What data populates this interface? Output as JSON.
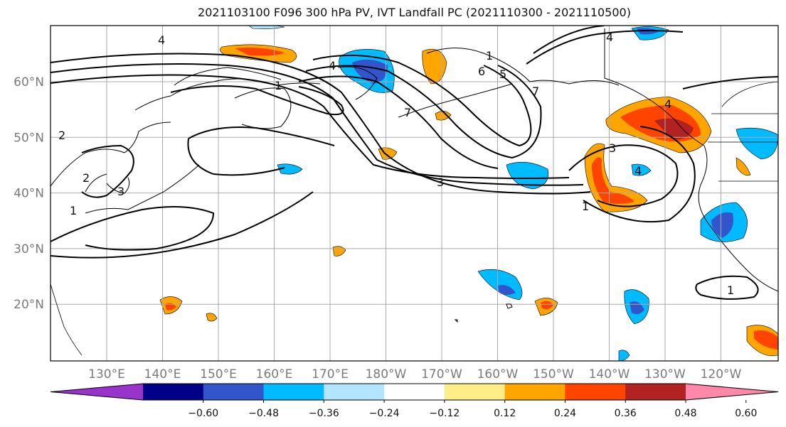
{
  "title": "2021103100 F096 300 hPa PV, IVT Landfall PC (2021110300 - 2021110500)",
  "latitudes": [
    {
      "value": 60,
      "label": "60°N"
    },
    {
      "value": 50,
      "label": "50°N"
    },
    {
      "value": 40,
      "label": "40°N"
    },
    {
      "value": 30,
      "label": "30°N"
    },
    {
      "value": 20,
      "label": "20°N"
    }
  ],
  "longitudes": [
    {
      "value": 130,
      "label": "130°E"
    },
    {
      "value": 140,
      "label": "140°E"
    },
    {
      "value": 150,
      "label": "150°E"
    },
    {
      "value": 160,
      "label": "160°E"
    },
    {
      "value": 170,
      "label": "170°E"
    },
    {
      "value": 180,
      "label": "180°W"
    },
    {
      "value": 190,
      "label": "170°W"
    },
    {
      "value": 200,
      "label": "160°W"
    },
    {
      "value": 210,
      "label": "150°W"
    },
    {
      "value": 220,
      "label": "140°W"
    },
    {
      "value": 230,
      "label": "130°W"
    },
    {
      "value": 240,
      "label": "120°W"
    }
  ],
  "colorbar": {
    "colors": [
      "#9933cc",
      "#000088",
      "#3355cc",
      "#00bbff",
      "#b3e5ff",
      "#ffffff",
      "#ffee88",
      "#ffa500",
      "#ff4400",
      "#b22222",
      "#ff88aa"
    ],
    "ticks": [
      "−0.60",
      "−0.48",
      "−0.36",
      "−0.24",
      "−0.12",
      "0.12",
      "0.24",
      "0.36",
      "0.48",
      "0.60"
    ]
  },
  "contour_labels": [
    "4",
    "4",
    "4",
    "1",
    "1",
    "1",
    "1",
    "2",
    "2",
    "3",
    "3",
    "3",
    "4",
    "5",
    "6",
    "7",
    "7",
    "1",
    "4"
  ],
  "colors": {
    "gridline": "#aaaaaa",
    "contour": "#000000",
    "coast": "#000000"
  }
}
